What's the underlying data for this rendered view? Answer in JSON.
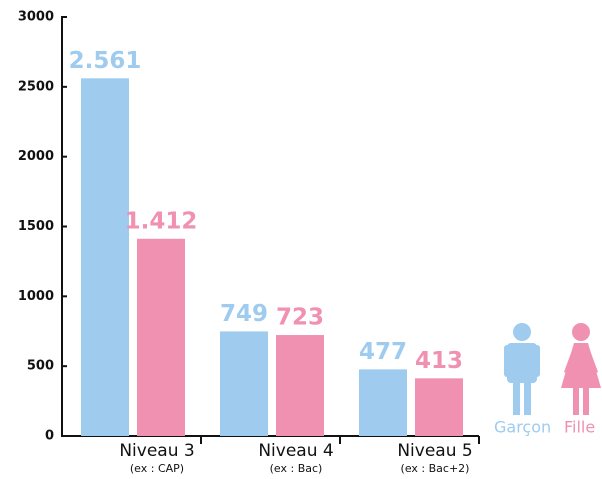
{
  "chart_data": {
    "type": "bar",
    "categories": [
      "Niveau 3",
      "Niveau 4",
      "Niveau 5"
    ],
    "category_notes": [
      "(ex : CAP)",
      "(ex : Bac)",
      "(ex : Bac+2)"
    ],
    "series": [
      {
        "name": "Garçon",
        "color": "#9ecbee",
        "values": [
          2561,
          749,
          477
        ],
        "value_labels": [
          "2.561",
          "749",
          "477"
        ]
      },
      {
        "name": "Fille",
        "color": "#f191b1",
        "values": [
          1412,
          723,
          413
        ],
        "value_labels": [
          "1.412",
          "723",
          "413"
        ]
      }
    ],
    "ylim": [
      0,
      3000
    ],
    "yticks": [
      0,
      500,
      1000,
      1500,
      2000,
      2500,
      3000
    ],
    "grid": false
  }
}
